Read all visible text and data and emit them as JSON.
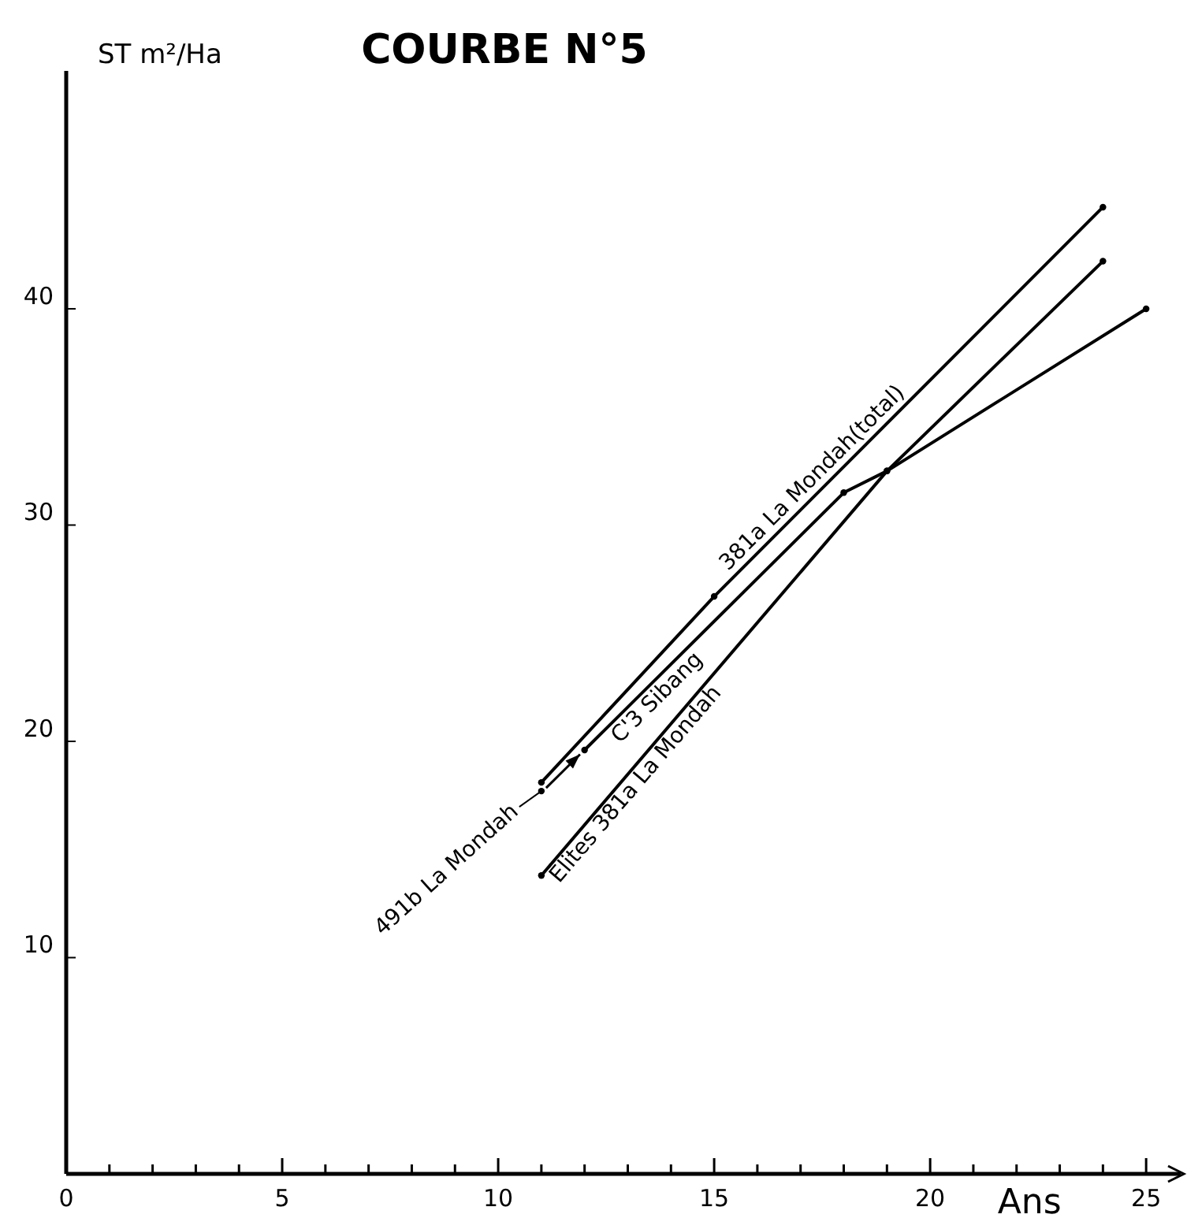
{
  "chart_data": {
    "type": "line",
    "title": "COURBE N°5",
    "ylabel": "ST m²/Ha",
    "xlabel": "Ans",
    "xlim": [
      0,
      25.8
    ],
    "ylim": [
      0,
      51
    ],
    "xticks": [
      0,
      {
        "value": 1,
        "label": null
      },
      {
        "value": 2,
        "label": null
      },
      {
        "value": 3,
        "label": null
      },
      {
        "value": 4,
        "label": null
      },
      5,
      {
        "value": 6,
        "label": null
      },
      {
        "value": 7,
        "label": null
      },
      {
        "value": 8,
        "label": null
      },
      {
        "value": 9,
        "label": null
      },
      10,
      {
        "value": 11,
        "label": null
      },
      {
        "value": 12,
        "label": null
      },
      {
        "value": 13,
        "label": null
      },
      {
        "value": 14,
        "label": null
      },
      15,
      {
        "value": 16,
        "label": null
      },
      {
        "value": 17,
        "label": null
      },
      {
        "value": 18,
        "label": null
      },
      {
        "value": 19,
        "label": null
      },
      20,
      {
        "value": 21,
        "label": null
      },
      {
        "value": 22,
        "label": null
      },
      {
        "value": 23,
        "label": null
      },
      {
        "value": 24,
        "label": null
      },
      25
    ],
    "yticks": [
      10,
      20,
      30,
      40
    ],
    "marker": "circle",
    "line_style": "solid",
    "grid": false,
    "series": [
      {
        "name": "381a La Mondah(total)",
        "color": "#000000",
        "x": [
          11,
          15,
          24
        ],
        "values": [
          18.1,
          26.7,
          44.7
        ]
      },
      {
        "name": "C'3 Sibang",
        "color": "#000000",
        "x": [
          12,
          18,
          19,
          25
        ],
        "values": [
          19.6,
          31.5,
          32.5,
          40
        ]
      },
      {
        "name": "Élites 381a La Mondah",
        "color": "#000000",
        "x": [
          11,
          19,
          24
        ],
        "values": [
          13.8,
          32.5,
          42.2
        ]
      },
      {
        "name": "491b La Mondah",
        "type": "scatter",
        "color": "#000000",
        "x": [
          11
        ],
        "values": [
          17.7
        ]
      }
    ]
  }
}
